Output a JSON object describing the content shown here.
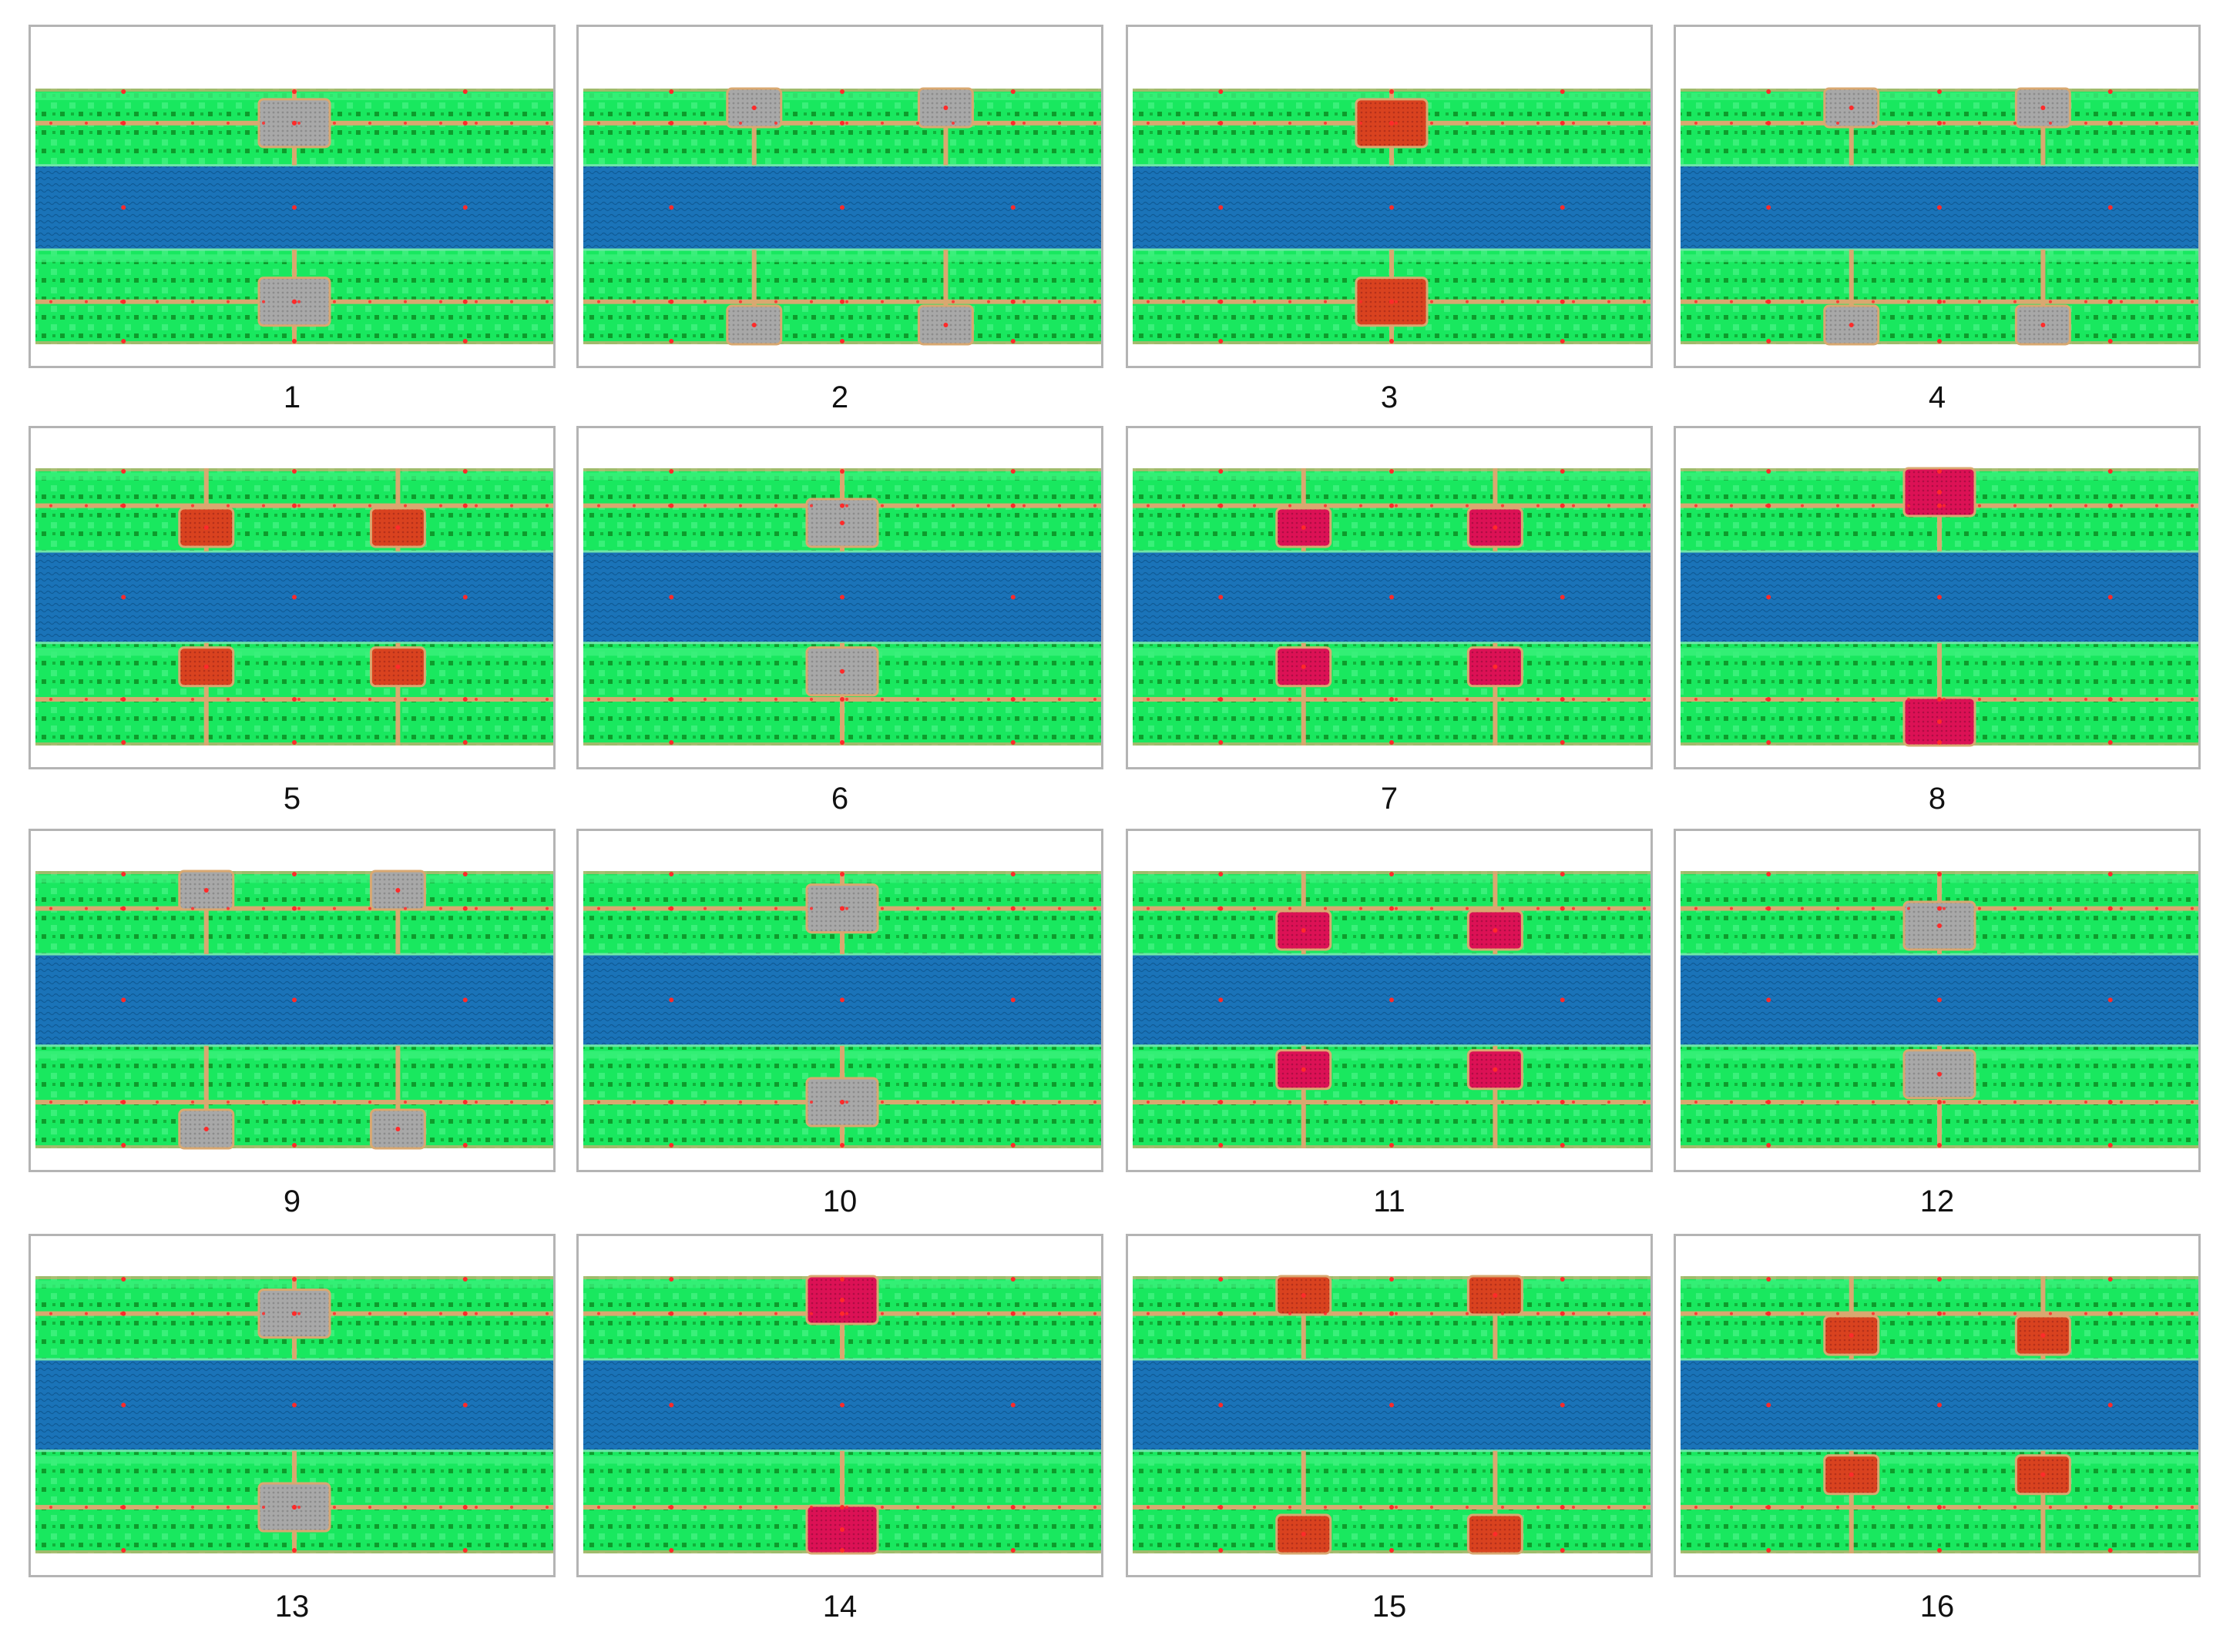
{
  "colors": {
    "green": "#19e85f",
    "green_light": "#3af07a",
    "green_dark": "#0e9c2c",
    "blue": "#1a73b8",
    "blue_dark": "#0f5a95",
    "road": "#d9a870",
    "grey": "#a8a8a8",
    "orange": "#d9421f",
    "crimson": "#dc1155",
    "dot": "#ff2a2a"
  },
  "panels": [
    {
      "label": "1",
      "variant": "grey",
      "blocks": 1,
      "style": "mid"
    },
    {
      "label": "2",
      "variant": "grey",
      "blocks": 2,
      "style": "edge"
    },
    {
      "label": "3",
      "variant": "orange",
      "blocks": 1,
      "style": "mid"
    },
    {
      "label": "4",
      "variant": "grey",
      "blocks": 2,
      "style": "edge"
    },
    {
      "label": "5",
      "variant": "orange",
      "blocks": 2,
      "style": "inner"
    },
    {
      "label": "6",
      "variant": "grey",
      "blocks": 1,
      "style": "inner"
    },
    {
      "label": "7",
      "variant": "crimson",
      "blocks": 2,
      "style": "inner"
    },
    {
      "label": "8",
      "variant": "crimson",
      "blocks": 1,
      "style": "edge"
    },
    {
      "label": "9",
      "variant": "grey",
      "blocks": 2,
      "style": "edge"
    },
    {
      "label": "10",
      "variant": "grey",
      "blocks": 1,
      "style": "mid"
    },
    {
      "label": "11",
      "variant": "crimson",
      "blocks": 2,
      "style": "inner"
    },
    {
      "label": "12",
      "variant": "grey",
      "blocks": 1,
      "style": "inner"
    },
    {
      "label": "13",
      "variant": "grey",
      "blocks": 1,
      "style": "mid"
    },
    {
      "label": "14",
      "variant": "crimson",
      "blocks": 1,
      "style": "edge"
    },
    {
      "label": "15",
      "variant": "orange",
      "blocks": 2,
      "style": "edge"
    },
    {
      "label": "16",
      "variant": "orange",
      "blocks": 2,
      "style": "inner"
    }
  ]
}
